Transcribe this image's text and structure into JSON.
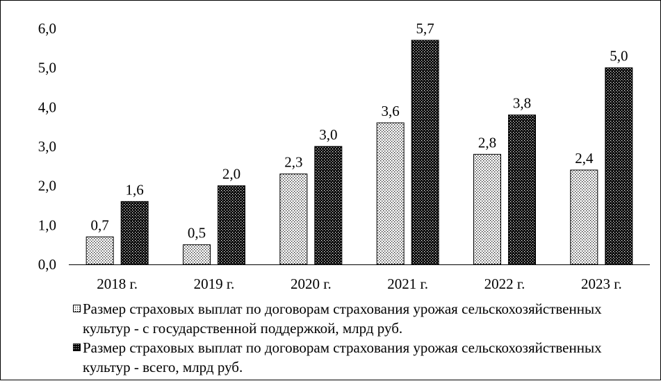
{
  "chart_data": {
    "type": "bar",
    "title": "",
    "xlabel": "",
    "ylabel": "",
    "categories": [
      "2018 г.",
      "2019 г.",
      "2020 г.",
      "2021 г.",
      "2022 г.",
      "2023 г."
    ],
    "series": [
      {
        "name": "Размер страховых выплат по договорам страхования урожая сельскохозяйственных культур - с государственной поддержкой, млрд  руб.",
        "values": [
          0.7,
          0.5,
          2.3,
          3.6,
          2.8,
          2.4
        ],
        "labels": [
          "0,7",
          "0,5",
          "2,3",
          "3,6",
          "2,8",
          "2,4"
        ],
        "pattern": "light-dots",
        "color": "#ffffff"
      },
      {
        "name": "Размер страховых выплат по договорам страхования урожая сельскохозяйственных культур - всего, млрд  руб.",
        "values": [
          1.6,
          2.0,
          3.0,
          5.7,
          3.8,
          5.0
        ],
        "labels": [
          "1,6",
          "2,0",
          "3,0",
          "5,7",
          "3,8",
          "5,0"
        ],
        "pattern": "dark-checker",
        "color": "#000000"
      }
    ],
    "ylim": [
      0,
      6
    ],
    "y_ticks": [
      0,
      1,
      2,
      3,
      4,
      5,
      6
    ],
    "y_tick_labels": [
      "0,0",
      "1,0",
      "2,0",
      "3,0",
      "4,0",
      "5,0",
      "6,0"
    ],
    "grid": false,
    "legend_position": "bottom"
  }
}
